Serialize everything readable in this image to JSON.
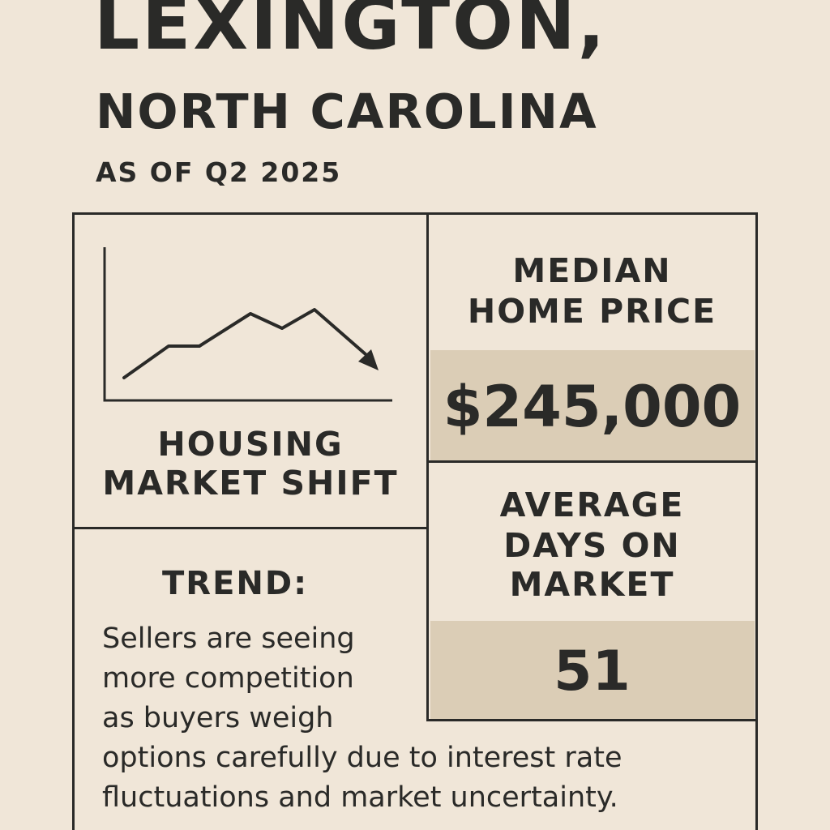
{
  "header": {
    "title_line1": "LEXINGTON,",
    "title_line2": "NORTH CAROLINA",
    "subtitle": "AS OF Q2 2025"
  },
  "chart_panel": {
    "label_line1": "HOUSING",
    "label_line2": "MARKET SHIFT",
    "icon": "trend-down-chart-icon"
  },
  "median_price": {
    "label_line1": "MEDIAN",
    "label_line2": "HOME PRICE",
    "value": "$245,000"
  },
  "days_on_market": {
    "label_line1": "AVERAGE",
    "label_line2": "DAYS ON",
    "label_line3": "MARKET",
    "value": "51"
  },
  "trend": {
    "heading": "TREND:",
    "lines": [
      "Sellers are seeing",
      "more competition",
      "as buyers weigh",
      "options carefully due to interest rate",
      "fluctuations and market uncertainty."
    ]
  },
  "colors": {
    "background": "#f0e6d8",
    "ink": "#2a2a28",
    "highlight": "#dbcdb6"
  }
}
